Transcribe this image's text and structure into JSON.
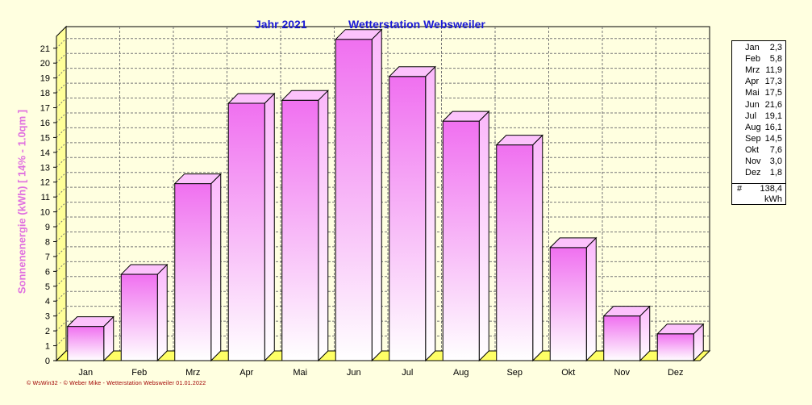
{
  "header": {
    "year": "Jahr  2021",
    "station": "Wetterstation Websweiler"
  },
  "axis": {
    "ylabel": "Sonnenenergie   (kWh)    [ 14% - 1.0qm ]"
  },
  "legend": {
    "rows": [
      {
        "month": "Jan",
        "value": "2,3"
      },
      {
        "month": "Feb",
        "value": "5,8"
      },
      {
        "month": "Mrz",
        "value": "11,9"
      },
      {
        "month": "Apr",
        "value": "17,3"
      },
      {
        "month": "Mai",
        "value": "17,5"
      },
      {
        "month": "Jun",
        "value": "21,6"
      },
      {
        "month": "Jul",
        "value": "19,1"
      },
      {
        "month": "Aug",
        "value": "16,1"
      },
      {
        "month": "Sep",
        "value": "14,5"
      },
      {
        "month": "Okt",
        "value": "7,6"
      },
      {
        "month": "Nov",
        "value": "3,0"
      },
      {
        "month": "Dez",
        "value": "1,8"
      }
    ],
    "total_symbol": "#",
    "total_value": "138,4",
    "total_unit": "kWh"
  },
  "footer": {
    "text": "© WsWin32  -  © Weber Mike  -  Wetterstation Websweiler   01.01.2022"
  },
  "colors": {
    "background": "#ffffe0",
    "bar_top": "#f070f0",
    "bar_bottom": "#ffffff",
    "floor": "#ffff66",
    "title": "#1a1ad6",
    "ylabel": "#e070e0"
  },
  "chart_data": {
    "type": "bar",
    "categories": [
      "Jan",
      "Feb",
      "Mrz",
      "Apr",
      "Mai",
      "Jun",
      "Jul",
      "Aug",
      "Sep",
      "Okt",
      "Nov",
      "Dez"
    ],
    "values": [
      2.3,
      5.8,
      11.9,
      17.3,
      17.5,
      21.6,
      19.1,
      16.1,
      14.5,
      7.6,
      3.0,
      1.8
    ],
    "ylabel": "Sonnenenergie   (kWh)    [ 14% - 1.0qm ]",
    "ylim": [
      0,
      22
    ],
    "yticks": [
      0,
      1,
      2,
      3,
      4,
      5,
      6,
      7,
      8,
      9,
      10,
      11,
      12,
      13,
      14,
      15,
      16,
      17,
      18,
      19,
      20,
      21
    ],
    "grid": true,
    "legend_position": "right"
  }
}
